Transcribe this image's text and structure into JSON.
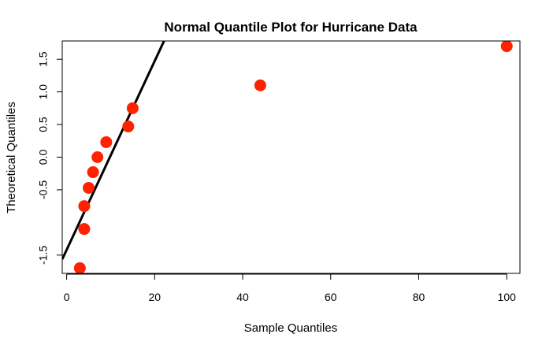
{
  "chart_data": {
    "type": "scatter",
    "title": "Normal Quantile Plot for Hurricane Data",
    "xlabel": "Sample Quantiles",
    "ylabel": "Theoretical Quantiles",
    "xlim": [
      -1,
      103
    ],
    "ylim": [
      -1.78,
      1.78
    ],
    "x_ticks": [
      0,
      20,
      40,
      60,
      80,
      100
    ],
    "x_tick_labels": [
      "0",
      "20",
      "40",
      "60",
      "80",
      "100"
    ],
    "y_ticks": [
      -1.5,
      -0.5,
      0.0,
      0.5,
      1.0,
      1.5
    ],
    "y_tick_labels": [
      "-1.5",
      "-0.5",
      "0.0",
      "0.5",
      "1.0",
      "1.5"
    ],
    "points": [
      {
        "x": 3,
        "y": -1.7
      },
      {
        "x": 4,
        "y": -1.1
      },
      {
        "x": 4,
        "y": -0.75
      },
      {
        "x": 5,
        "y": -0.47
      },
      {
        "x": 6,
        "y": -0.23
      },
      {
        "x": 7,
        "y": 0.0
      },
      {
        "x": 9,
        "y": 0.23
      },
      {
        "x": 14,
        "y": 0.47
      },
      {
        "x": 15,
        "y": 0.75
      },
      {
        "x": 44,
        "y": 1.1
      },
      {
        "x": 100,
        "y": 1.7
      }
    ],
    "reference_line": {
      "intercept": -1.42,
      "slope": 0.1446
    },
    "point_color": "#ff2200",
    "line_color": "#000000",
    "grid": false
  }
}
